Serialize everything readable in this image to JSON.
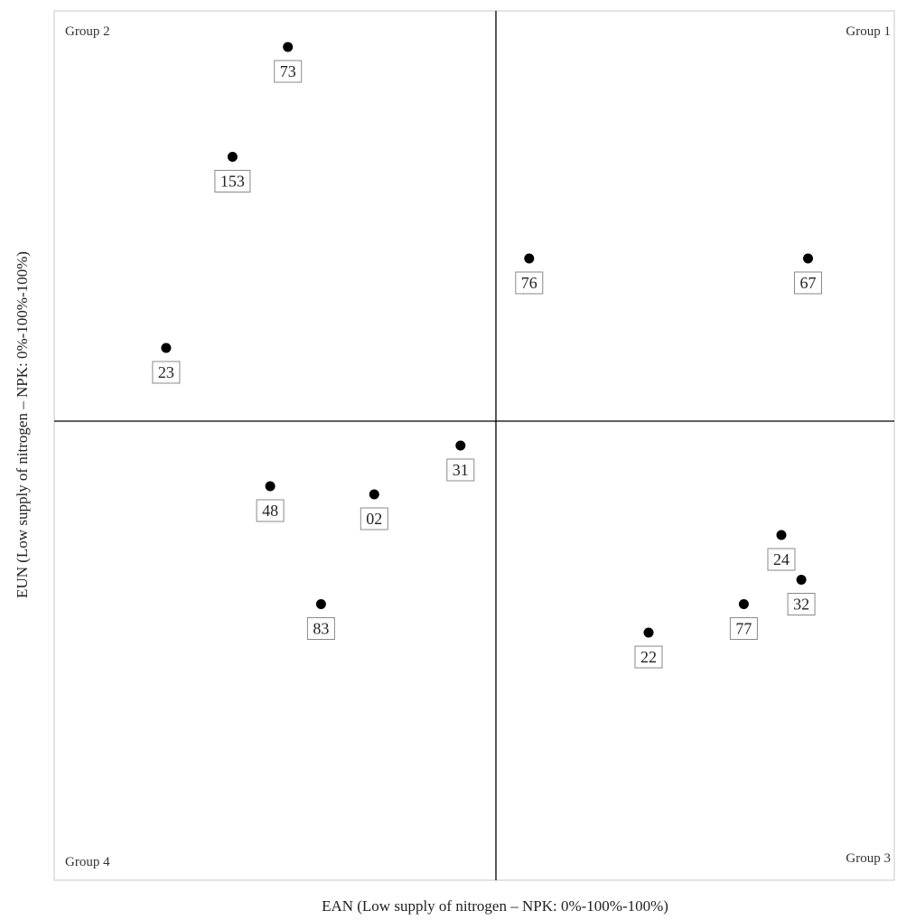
{
  "chart_data": {
    "type": "scatter",
    "title": "",
    "xlabel": "EAN (Low supply of nitrogen – NPK: 0%-100%-100%)",
    "ylabel": "EUN (Low supply of nitrogen – NPK: 0%-100%-100%)",
    "quadrants": [
      {
        "name": "Group 2",
        "position": "top-left"
      },
      {
        "name": "Group 1",
        "position": "top-right"
      },
      {
        "name": "Group 4",
        "position": "bottom-left"
      },
      {
        "name": "Group 3",
        "position": "bottom-right"
      }
    ],
    "grid": false,
    "legend": "none",
    "point_color": "#000000",
    "points": [
      {
        "label": "73",
        "x": -0.94,
        "y": 0.92
      },
      {
        "label": "153",
        "x": -1.19,
        "y": 0.65
      },
      {
        "label": "76",
        "x": 0.15,
        "y": 0.4
      },
      {
        "label": "67",
        "x": 1.41,
        "y": 0.4
      },
      {
        "label": "23",
        "x": -1.49,
        "y": 0.18
      },
      {
        "label": "31",
        "x": -0.16,
        "y": -0.06
      },
      {
        "label": "48",
        "x": -1.02,
        "y": -0.16
      },
      {
        "label": "02",
        "x": -0.55,
        "y": -0.18
      },
      {
        "label": "24",
        "x": 1.29,
        "y": -0.28
      },
      {
        "label": "32",
        "x": 1.38,
        "y": -0.39
      },
      {
        "label": "83",
        "x": -0.79,
        "y": -0.45
      },
      {
        "label": "77",
        "x": 1.12,
        "y": -0.45
      },
      {
        "label": "22",
        "x": 0.69,
        "y": -0.52
      }
    ]
  }
}
